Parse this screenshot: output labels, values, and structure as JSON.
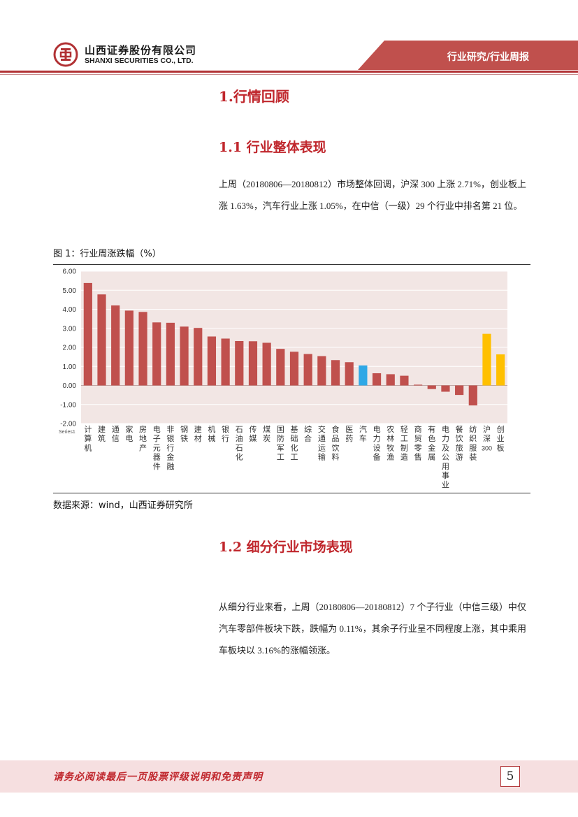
{
  "header": {
    "company_cn": "山西证券股份有限公司",
    "company_en": "SHANXI SECURITIES CO., LTD.",
    "tag": "行业研究/行业周报",
    "brand_color": "#b13134"
  },
  "sections": {
    "h1": "1.行情回顾",
    "s1_title": "1.1 行业整体表现",
    "s1_para": "上周（20180806—20180812）市场整体回调，沪深 300 上涨 2.71%，创业板上涨 1.63%，汽车行业上涨 1.05%，在中信（一级）29 个行业中排名第 21 位。",
    "s2_title": "1.2 细分行业市场表现",
    "s2_para": "从细分行业来看，上周（20180806—20180812）7 个子行业（中信三级）中仅汽车零部件板块下跌，跌幅为 0.11%，其余子行业呈不同程度上涨，其中乘用车板块以 3.16%的涨幅领涨。"
  },
  "figure": {
    "title": "图 1：行业周涨跌幅（%）",
    "source": "数据来源：wind，山西证券研究所"
  },
  "chart_data": {
    "type": "bar",
    "categories": [
      "计算机",
      "建筑",
      "通信",
      "家电",
      "房地产",
      "电子元器件",
      "非银行金融",
      "钢铁",
      "建材",
      "机械",
      "银行",
      "石油石化",
      "传媒",
      "煤炭",
      "国防军工",
      "基础化工",
      "综合",
      "交通运输",
      "食品饮料",
      "医药",
      "汽车",
      "电力设备",
      "农林牧渔",
      "轻工制造",
      "商贸零售",
      "有色金属",
      "电力及公用事业",
      "餐饮旅游",
      "纺织服装",
      "沪深300",
      "创业板"
    ],
    "values": [
      5.38,
      4.78,
      4.2,
      3.93,
      3.86,
      3.31,
      3.29,
      3.09,
      3.02,
      2.57,
      2.46,
      2.33,
      2.32,
      2.24,
      1.92,
      1.77,
      1.65,
      1.54,
      1.33,
      1.22,
      1.05,
      0.64,
      0.59,
      0.51,
      0.04,
      -0.19,
      -0.33,
      -0.5,
      -1.05,
      2.71,
      1.63
    ],
    "colors": {
      "default": "#c0504d",
      "auto": "#2fa8e6",
      "index": "#ffc000",
      "plot_bg": "#f2e6e4",
      "grid": "#ffffff"
    },
    "highlight": {
      "汽车": "auto",
      "沪深300": "index",
      "创业板": "index"
    },
    "ylim": [
      -2,
      6
    ],
    "yticks": [
      "6.00",
      "5.00",
      "4.00",
      "3.00",
      "2.00",
      "1.00",
      "0.00",
      "-1.00",
      "-2.00"
    ],
    "xlabel": "",
    "ylabel": "",
    "legend_stub": "Series1",
    "grid": true
  },
  "footer": {
    "disclaimer": "请务必阅读最后一页股票评级说明和免责声明",
    "page_number": "5"
  }
}
